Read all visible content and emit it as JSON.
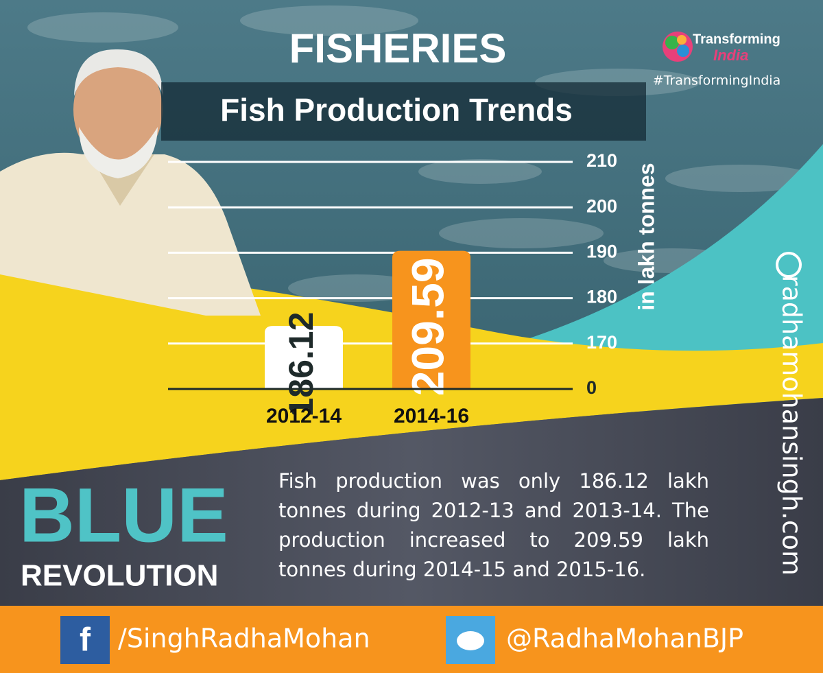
{
  "chart_data": {
    "type": "bar",
    "title": "FISHERIES",
    "subtitle": "Fish Production Trends",
    "y_axis_label": "in lakh tonnes",
    "categories": [
      "2012-14",
      "2014-16"
    ],
    "values": [
      186.12,
      209.59
    ],
    "colors": [
      "#ffffff",
      "#f7941d"
    ],
    "ylim": [
      0,
      210
    ],
    "yticks": [
      0,
      170,
      180,
      190,
      200,
      210
    ],
    "axis_break": true,
    "grid": true
  },
  "branding": {
    "logo_top": "Transforming",
    "logo_bottom": "India",
    "hashtag": "#TransformingIndia",
    "website": "radhamohansingh.com"
  },
  "banner": {
    "headline": "BLUE",
    "subheadline": "REVOLUTION",
    "text": "Fish production was only 186.12 lakh tonnes during 2012-13 and 2013-14. The production increased to 209.59 lakh tonnes during 2014-15 and 2015-16."
  },
  "footer": {
    "facebook": "/SinghRadhaMohan",
    "twitter": "@RadhaMohanBJP"
  }
}
